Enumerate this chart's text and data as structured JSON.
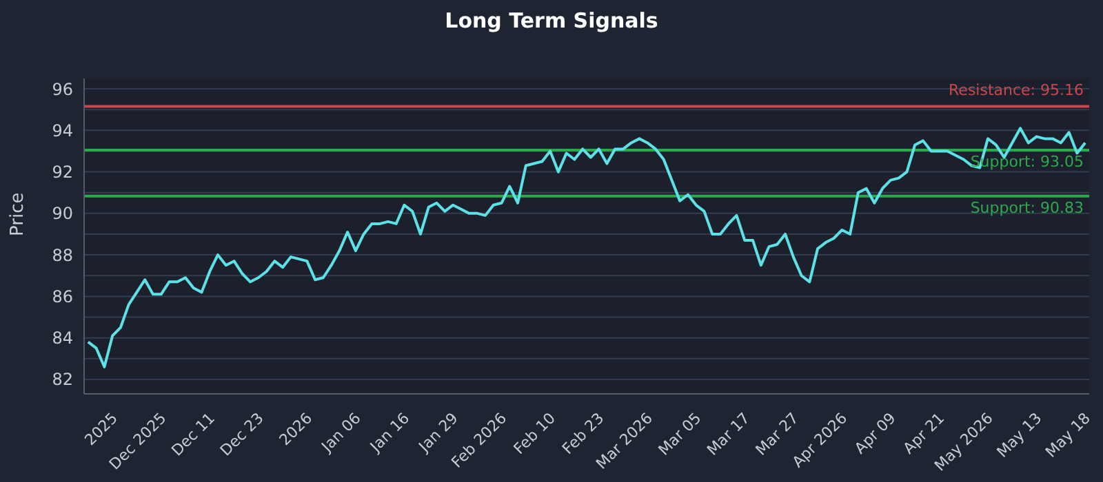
{
  "chart_data": {
    "type": "line",
    "title": "Long Term Signals",
    "ylabel": "Price",
    "categories": [
      null,
      null,
      null,
      "2025",
      null,
      null,
      null,
      null,
      null,
      "Dec 2025",
      null,
      null,
      null,
      null,
      null,
      "Dec 11",
      null,
      null,
      null,
      null,
      null,
      "Dec 23",
      null,
      null,
      null,
      null,
      null,
      "2026",
      null,
      null,
      null,
      null,
      null,
      "Jan 06",
      null,
      null,
      null,
      null,
      null,
      "Jan 16",
      null,
      null,
      null,
      null,
      null,
      "Jan 29",
      null,
      null,
      null,
      null,
      null,
      "Feb 2026",
      null,
      null,
      null,
      null,
      null,
      "Feb 10",
      null,
      null,
      null,
      null,
      null,
      "Feb 23",
      null,
      null,
      null,
      null,
      null,
      "Mar 2026",
      null,
      null,
      null,
      null,
      null,
      "Mar 05",
      null,
      null,
      null,
      null,
      null,
      "Mar 17",
      null,
      null,
      null,
      null,
      null,
      "Mar 27",
      null,
      null,
      null,
      null,
      null,
      "Apr 2026",
      null,
      null,
      null,
      null,
      null,
      "Apr 09",
      null,
      null,
      null,
      null,
      null,
      "Apr 21",
      null,
      null,
      null,
      null,
      null,
      "May 2026",
      null,
      null,
      null,
      null,
      null,
      "May 13",
      null,
      null,
      null,
      null,
      null,
      "May 18"
    ],
    "series": [
      {
        "color": "#5ce1e6",
        "values": [
          83.8,
          83.5,
          82.6,
          84.1,
          84.5,
          85.6,
          86.2,
          86.8,
          86.1,
          86.1,
          86.7,
          86.7,
          86.9,
          86.4,
          86.2,
          87.2,
          88.0,
          87.5,
          87.7,
          87.1,
          86.7,
          86.9,
          87.2,
          87.7,
          87.4,
          87.9,
          87.8,
          87.7,
          86.8,
          86.9,
          87.5,
          88.2,
          89.1,
          88.2,
          89.0,
          89.5,
          89.5,
          89.6,
          89.5,
          90.4,
          90.1,
          89.0,
          90.3,
          90.5,
          90.1,
          90.4,
          90.2,
          90.0,
          90.0,
          89.9,
          90.4,
          90.5,
          91.3,
          90.5,
          92.3,
          92.4,
          92.5,
          93.0,
          92.0,
          92.9,
          92.6,
          93.1,
          92.7,
          93.1,
          92.4,
          93.1,
          93.1,
          93.4,
          93.6,
          93.4,
          93.1,
          92.6,
          91.6,
          90.6,
          90.9,
          90.4,
          90.1,
          89.0,
          89.0,
          89.5,
          89.9,
          88.7,
          88.7,
          87.5,
          88.4,
          88.5,
          89.0,
          87.9,
          87.0,
          86.7,
          88.3,
          88.6,
          88.8,
          89.2,
          89.0,
          91.0,
          91.2,
          90.5,
          91.2,
          91.6,
          91.7,
          92.0,
          93.3,
          93.5,
          93.0,
          93.0,
          93.0,
          92.8,
          92.6,
          92.3,
          92.2,
          93.6,
          93.3,
          92.7,
          93.4,
          94.1,
          93.4,
          93.7,
          93.6,
          93.6,
          93.4,
          93.9,
          92.9,
          93.4
        ]
      }
    ],
    "ylim": [
      81.3,
      96.5
    ],
    "yticks": [
      82,
      {
        "value": 83,
        "label": null
      },
      84,
      {
        "value": 85,
        "label": null
      },
      86,
      {
        "value": 87,
        "label": null
      },
      88,
      {
        "value": 89,
        "label": null
      },
      90,
      {
        "value": 91,
        "label": null
      },
      92,
      {
        "value": 93,
        "label": null
      },
      94,
      {
        "value": 95,
        "label": null
      },
      96
    ],
    "grid": "y",
    "legend": false,
    "marker": "none",
    "line_style": "solid",
    "ref_lines": [
      {
        "axis": "y",
        "value": 95.16,
        "label": "Resistance: 95.16",
        "color": "#c9474f",
        "line_style": "solid"
      },
      {
        "axis": "y",
        "value": 93.05,
        "label": "Support: 93.05",
        "color": "#2ea84f",
        "line_style": "solid"
      },
      {
        "axis": "y",
        "value": 90.83,
        "label": "Support: 90.83",
        "color": "#2ea84f",
        "line_style": "solid"
      }
    ]
  }
}
